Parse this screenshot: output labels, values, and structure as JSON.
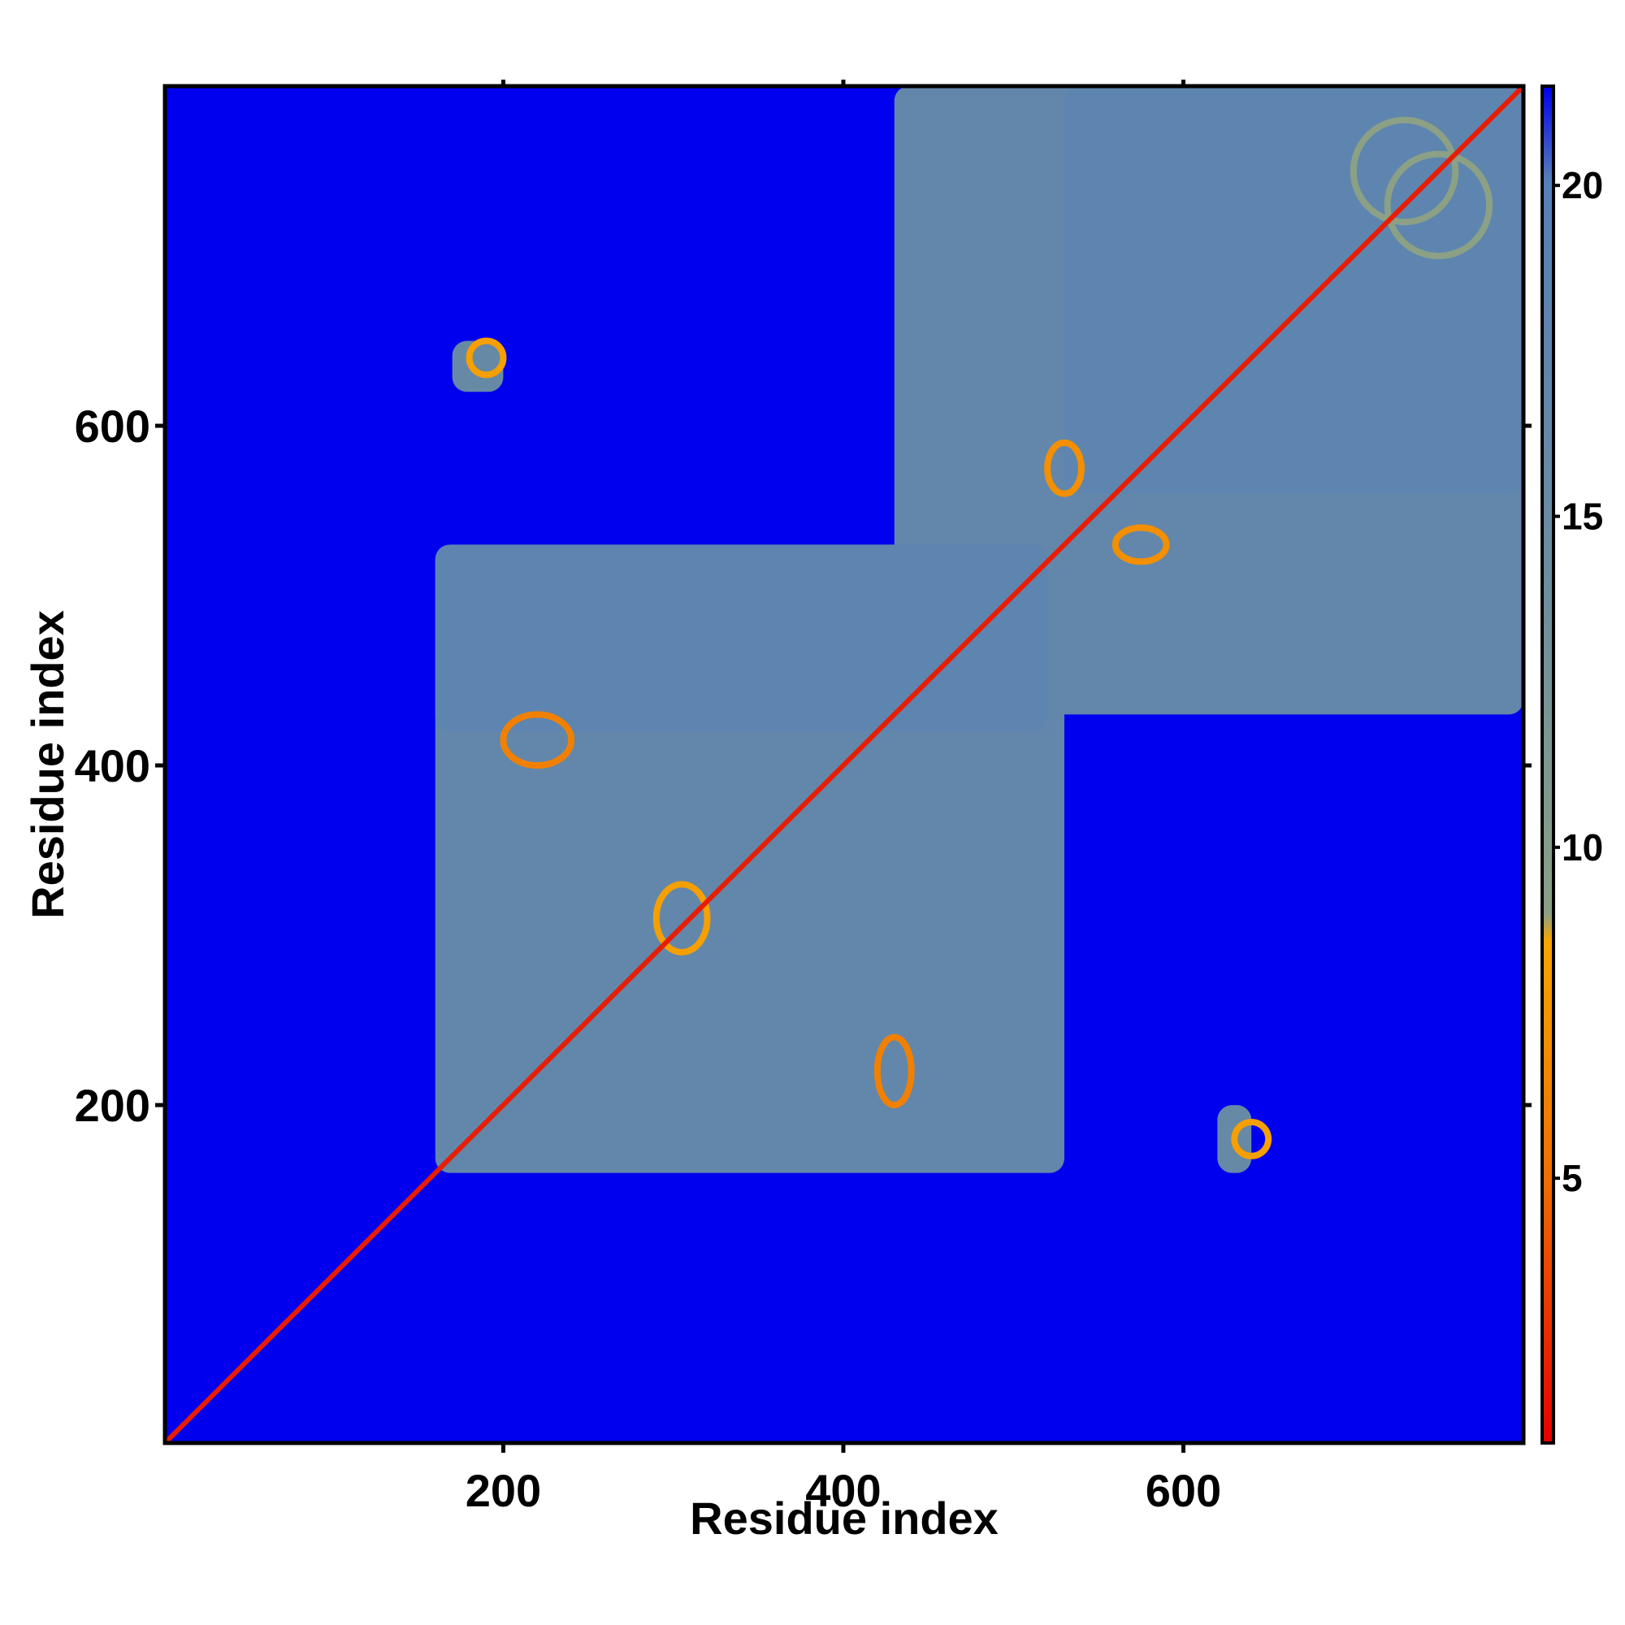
{
  "chart_data": {
    "type": "heatmap",
    "title": "",
    "xlabel": "Residue index",
    "ylabel": "Residue index",
    "xlim": [
      1,
      800
    ],
    "ylim": [
      1,
      800
    ],
    "x_ticks": [
      200,
      400,
      600
    ],
    "y_ticks": [
      200,
      400,
      600
    ],
    "x_tick_labels": [
      "200",
      "400",
      "600"
    ],
    "y_tick_labels": [
      "200",
      "400",
      "600"
    ],
    "colorbar": {
      "ticks": [
        5,
        10,
        15,
        20
      ],
      "tick_labels": [
        "5",
        "10",
        "15",
        "20"
      ],
      "range": [
        1,
        21.5
      ],
      "colors": [
        "#e60000",
        "#f07000",
        "#f7a500",
        "#8ba085",
        "#5580b8",
        "#0000ee"
      ]
    },
    "background_value": 21.5,
    "diagonal_value": 2,
    "contact_regions": [
      {
        "x": [
          160,
          530
        ],
        "y": [
          160,
          530
        ],
        "value": 17
      },
      {
        "x": [
          430,
          800
        ],
        "y": [
          430,
          800
        ],
        "value": 17
      },
      {
        "x": [
          160,
          520
        ],
        "y": [
          420,
          530
        ],
        "value": 18
      },
      {
        "x": [
          620,
          640
        ],
        "y": [
          160,
          200
        ],
        "value": 16
      },
      {
        "x": [
          170,
          200
        ],
        "y": [
          620,
          650
        ],
        "value": 16
      },
      {
        "x": [
          530,
          800
        ],
        "y": [
          560,
          800
        ],
        "value": 18
      }
    ],
    "secondary_contacts": [
      {
        "x": [
          200,
          240
        ],
        "y": [
          400,
          430
        ],
        "value": 6
      },
      {
        "x": [
          420,
          440
        ],
        "y": [
          200,
          240
        ],
        "value": 6
      },
      {
        "x": [
          180,
          200
        ],
        "y": [
          630,
          650
        ],
        "value": 8
      },
      {
        "x": [
          630,
          650
        ],
        "y": [
          170,
          190
        ],
        "value": 8
      },
      {
        "x": [
          520,
          540
        ],
        "y": [
          560,
          590
        ],
        "value": 7
      },
      {
        "x": [
          560,
          590
        ],
        "y": [
          520,
          540
        ],
        "value": 7
      },
      {
        "x": [
          700,
          760
        ],
        "y": [
          720,
          780
        ],
        "value": 9
      },
      {
        "x": [
          720,
          780
        ],
        "y": [
          700,
          760
        ],
        "value": 9
      },
      {
        "x": [
          290,
          320
        ],
        "y": [
          290,
          330
        ],
        "value": 8
      }
    ]
  }
}
